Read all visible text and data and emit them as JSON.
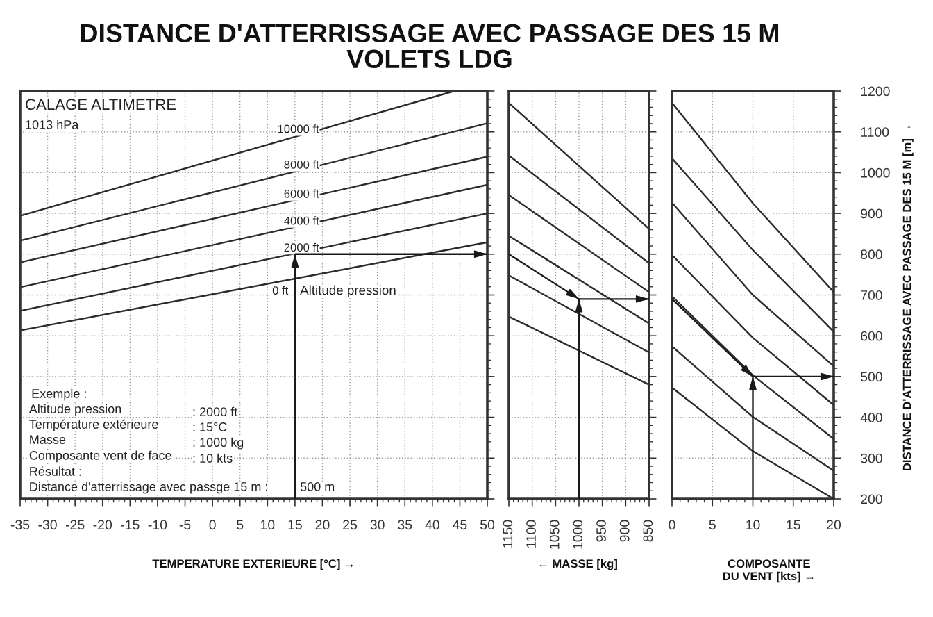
{
  "chart_data": [
    {
      "type": "line",
      "title": "DISTANCE D'ATTERRISSAGE AVEC PASSAGE DES 15 M",
      "subtitle": "VOLETS LDG",
      "xlabel": "TEMPERATURE EXTERIEURE [°C] →",
      "xlim": [
        -35,
        50
      ],
      "xticks": [
        -35,
        -30,
        -25,
        -20,
        -15,
        -10,
        -5,
        0,
        5,
        10,
        15,
        20,
        25,
        30,
        35,
        40,
        45,
        50
      ],
      "ylim": [
        200,
        1200
      ],
      "yticks": [
        200,
        300,
        400,
        500,
        600,
        700,
        800,
        900,
        1000,
        1100,
        1200
      ],
      "tick_labels": "x",
      "grid": true,
      "series": [
        {
          "name": "0 ft",
          "color": "#2b2b2b",
          "x": [
            -35,
            50
          ],
          "values": [
            613,
            829
          ]
        },
        {
          "name": "2000 ft",
          "color": "#2b2b2b",
          "x": [
            -35,
            50
          ],
          "values": [
            661,
            900
          ]
        },
        {
          "name": "4000 ft",
          "color": "#2b2b2b",
          "x": [
            -35,
            50
          ],
          "values": [
            719,
            970
          ]
        },
        {
          "name": "6000 ft",
          "color": "#2b2b2b",
          "x": [
            -35,
            50
          ],
          "values": [
            780,
            1039
          ]
        },
        {
          "name": "8000 ft",
          "color": "#2b2b2b",
          "x": [
            -35,
            50
          ],
          "values": [
            833,
            1121
          ]
        },
        {
          "name": "10000 ft",
          "color": "#2b2b2b",
          "x": [
            -35,
            44
          ],
          "values": [
            894,
            1200
          ]
        },
        {
          "color": "#1a1a1a",
          "x": [
            15,
            15
          ],
          "values": [
            200,
            800
          ]
        },
        {
          "color": "#1a1a1a",
          "x": [
            15,
            50
          ],
          "values": [
            800,
            800
          ]
        }
      ],
      "annotations": [
        "CALAGE ALTIMETRE",
        "1013 hPa",
        "Altitude pression",
        "Exemple :",
        "Altitude pression",
        ": 2000 ft",
        "Température extérieure",
        ": 15°C",
        "Masse",
        ": 1000 kg",
        "Composante vent de face",
        ": 10 kts",
        "Résultat :",
        "Distance d'atterrissage avec passge 15 m :",
        "500 m"
      ]
    },
    {
      "type": "line",
      "xlabel": "← MASSE [kg]",
      "xlim": [
        1150,
        850
      ],
      "xticks": [
        1150,
        1100,
        1050,
        1000,
        950,
        900,
        850
      ],
      "ylim": [
        200,
        1200
      ],
      "yticks": [
        200,
        300,
        400,
        500,
        600,
        700,
        800,
        900,
        1000,
        1100,
        1200
      ],
      "tick_labels": "x",
      "grid": true,
      "series": [
        {
          "color": "#2b2b2b",
          "x": [
            1150,
            850
          ],
          "values": [
            1171,
            862
          ]
        },
        {
          "color": "#2b2b2b",
          "x": [
            1150,
            850
          ],
          "values": [
            1042,
            778
          ]
        },
        {
          "color": "#2b2b2b",
          "x": [
            1150,
            850
          ],
          "values": [
            945,
            707
          ]
        },
        {
          "color": "#2b2b2b",
          "x": [
            1150,
            850
          ],
          "values": [
            845,
            630
          ]
        },
        {
          "color": "#2b2b2b",
          "x": [
            1150,
            850
          ],
          "values": [
            748,
            559
          ]
        },
        {
          "color": "#2b2b2b",
          "x": [
            1150,
            850
          ],
          "values": [
            647,
            480
          ]
        },
        {
          "color": "#1a1a1a",
          "x": [
            1150,
            1000
          ],
          "values": [
            800,
            690
          ]
        },
        {
          "color": "#1a1a1a",
          "x": [
            1000,
            1000
          ],
          "values": [
            200,
            690
          ]
        },
        {
          "color": "#1a1a1a",
          "x": [
            1000,
            850
          ],
          "values": [
            690,
            690
          ]
        }
      ]
    },
    {
      "type": "line",
      "xlabel": "COMPOSANTE\nDU VENT [kts] →",
      "ylabel": "DISTANCE D'ATTERRISSAGE AVEC PASSAGE DES 15 M [m] →",
      "xlim": [
        0,
        20
      ],
      "xticks": [
        0,
        5,
        10,
        15,
        20
      ],
      "ylim": [
        200,
        1200
      ],
      "yticks": [
        200,
        300,
        400,
        500,
        600,
        700,
        800,
        900,
        1000,
        1100,
        1200
      ],
      "grid": true,
      "series": [
        {
          "color": "#2b2b2b",
          "x": [
            0,
            10,
            20
          ],
          "values": [
            1171,
            925,
            707
          ]
        },
        {
          "color": "#2b2b2b",
          "x": [
            0,
            10,
            20
          ],
          "values": [
            1035,
            810,
            610
          ]
        },
        {
          "color": "#2b2b2b",
          "x": [
            0,
            10,
            20
          ],
          "values": [
            926,
            700,
            525
          ]
        },
        {
          "color": "#2b2b2b",
          "x": [
            0,
            10,
            20
          ],
          "values": [
            798,
            595,
            430
          ]
        },
        {
          "color": "#2b2b2b",
          "x": [
            0,
            10,
            20
          ],
          "values": [
            697,
            503,
            347
          ]
        },
        {
          "color": "#2b2b2b",
          "x": [
            0,
            10,
            20
          ],
          "values": [
            574,
            401,
            269
          ]
        },
        {
          "color": "#2b2b2b",
          "x": [
            0,
            10,
            20
          ],
          "values": [
            473,
            317,
            200
          ]
        },
        {
          "color": "#1a1a1a",
          "x": [
            0,
            10
          ],
          "values": [
            690,
            500
          ]
        },
        {
          "color": "#1a1a1a",
          "x": [
            10,
            10
          ],
          "values": [
            200,
            500
          ]
        },
        {
          "color": "#1a1a1a",
          "x": [
            10,
            20
          ],
          "values": [
            500,
            500
          ]
        }
      ]
    }
  ]
}
